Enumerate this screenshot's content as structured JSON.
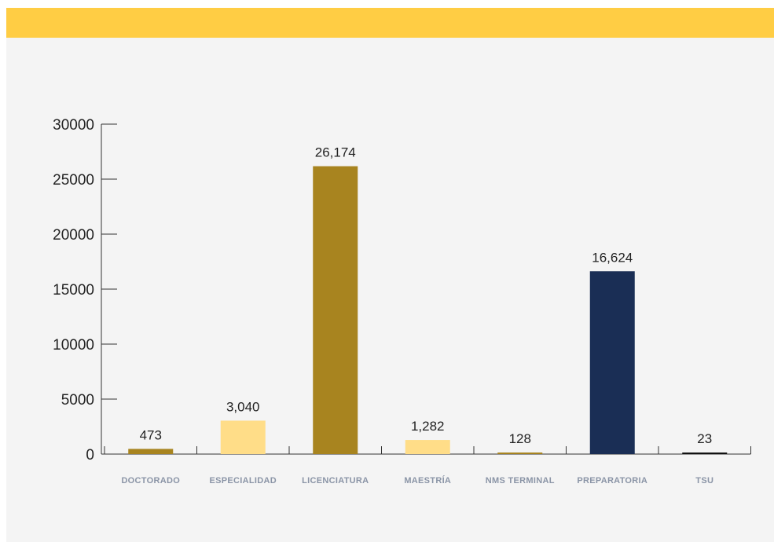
{
  "header": {
    "accent_color": "#ffcd44"
  },
  "chart_data": {
    "type": "bar",
    "categories": [
      "DOCTORADO",
      "ESPECIALIDAD",
      "LICENCIATURA",
      "MAESTRÍA",
      "NMS TERMINAL",
      "PREPARATORIA",
      "TSU"
    ],
    "values": [
      473,
      3040,
      26174,
      1282,
      128,
      16624,
      23
    ],
    "value_labels": [
      "473",
      "3,040",
      "26,174",
      "1,282",
      "128",
      "16,624",
      "23"
    ],
    "colors": [
      "#a8841f",
      "#ffdd88",
      "#a8841f",
      "#ffdd88",
      "#a8841f",
      "#1a2e55",
      "#111111"
    ],
    "yticks": [
      0,
      5000,
      10000,
      15000,
      20000,
      25000,
      30000
    ],
    "ytick_labels": [
      "0",
      "5000",
      "10000",
      "15000",
      "20000",
      "25000",
      "30000"
    ],
    "ylim": [
      0,
      30000
    ],
    "title": "",
    "xlabel": "",
    "ylabel": "",
    "grid": false,
    "legend": "none"
  }
}
